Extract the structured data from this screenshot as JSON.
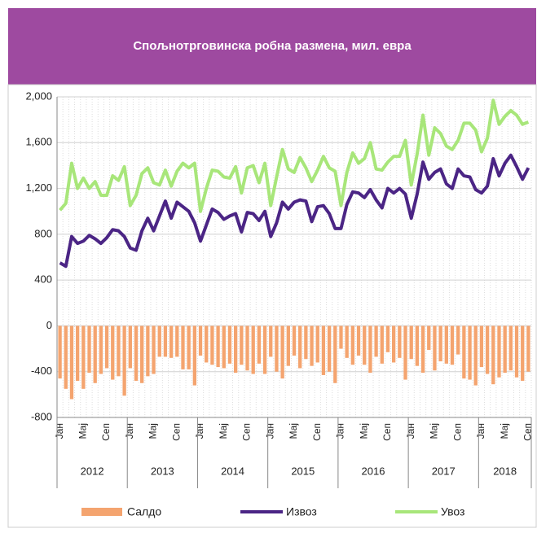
{
  "chart_data": {
    "type": "bar-line",
    "title": "Спољнотрговинска робна размена, мил. евра",
    "categories": [
      "Јан",
      null,
      null,
      null,
      "Мај",
      null,
      null,
      null,
      "Сеп",
      null,
      null,
      null,
      "Јан",
      null,
      null,
      null,
      "Мај",
      null,
      null,
      null,
      "Сеп",
      null,
      null,
      null,
      "Јан",
      null,
      null,
      null,
      "Мај",
      null,
      null,
      null,
      "Сеп",
      null,
      null,
      null,
      "Јан",
      null,
      null,
      null,
      "Мај",
      null,
      null,
      null,
      "Сеп",
      null,
      null,
      null,
      "Јан",
      null,
      null,
      null,
      "Мај",
      null,
      null,
      null,
      "Сеп",
      null,
      null,
      null,
      "Јан",
      null,
      null,
      null,
      "Мај",
      null,
      null,
      null,
      "Сеп",
      null,
      null,
      null,
      "Јан",
      null,
      null,
      null,
      "Мај",
      null,
      null,
      null,
      "Сеп"
    ],
    "year_groups": [
      "2012",
      "2013",
      "2014",
      "2015",
      "2016",
      "2017",
      "2018"
    ],
    "series": [
      {
        "name": "Салдо",
        "type": "bar",
        "color": "#f4a46f",
        "values": [
          -460,
          -550,
          -640,
          -480,
          -550,
          -410,
          -500,
          -420,
          -370,
          -470,
          -440,
          -610,
          -370,
          -480,
          -500,
          -440,
          -420,
          -270,
          -270,
          -280,
          -270,
          -380,
          -380,
          -520,
          -260,
          -320,
          -340,
          -360,
          -370,
          -330,
          -410,
          -340,
          -390,
          -420,
          -330,
          -420,
          -270,
          -400,
          -460,
          -350,
          -260,
          -370,
          -290,
          -350,
          -320,
          -430,
          -400,
          -500,
          -200,
          -280,
          -340,
          -260,
          -340,
          -410,
          -270,
          -330,
          -230,
          -320,
          -280,
          -470,
          -290,
          -350,
          -410,
          -210,
          -390,
          -310,
          -330,
          -340,
          -250,
          -460,
          -470,
          -520,
          -360,
          -420,
          -510,
          -450,
          -410,
          -390,
          -450,
          -480,
          -400
        ]
      },
      {
        "name": "Извоз",
        "type": "line",
        "color": "#4b2585",
        "values": [
          550,
          520,
          780,
          720,
          740,
          790,
          760,
          720,
          770,
          840,
          830,
          780,
          680,
          660,
          830,
          940,
          830,
          960,
          1090,
          940,
          1080,
          1040,
          1000,
          900,
          740,
          880,
          1020,
          990,
          930,
          960,
          980,
          820,
          990,
          980,
          920,
          1000,
          780,
          900,
          1080,
          1020,
          1080,
          1100,
          1090,
          910,
          1040,
          1050,
          980,
          850,
          850,
          1060,
          1170,
          1160,
          1120,
          1190,
          1100,
          1030,
          1200,
          1160,
          1200,
          1150,
          940,
          1150,
          1430,
          1280,
          1340,
          1370,
          1240,
          1200,
          1370,
          1310,
          1300,
          1190,
          1160,
          1220,
          1460,
          1310,
          1420,
          1490,
          1390,
          1280,
          1380
        ]
      },
      {
        "name": "Увоз",
        "type": "line",
        "color": "#a8e67a",
        "values": [
          1010,
          1070,
          1420,
          1200,
          1290,
          1200,
          1260,
          1140,
          1140,
          1310,
          1270,
          1390,
          1050,
          1140,
          1330,
          1380,
          1250,
          1230,
          1360,
          1220,
          1350,
          1420,
          1380,
          1420,
          1000,
          1200,
          1360,
          1350,
          1300,
          1290,
          1390,
          1160,
          1380,
          1400,
          1250,
          1420,
          1050,
          1300,
          1540,
          1370,
          1340,
          1470,
          1380,
          1260,
          1360,
          1480,
          1380,
          1350,
          1050,
          1340,
          1510,
          1420,
          1460,
          1600,
          1370,
          1360,
          1430,
          1480,
          1480,
          1620,
          1230,
          1500,
          1840,
          1490,
          1730,
          1680,
          1570,
          1540,
          1620,
          1770,
          1770,
          1710,
          1520,
          1640,
          1970,
          1760,
          1830,
          1880,
          1840,
          1760,
          1780
        ]
      }
    ],
    "ylim": [
      -800,
      2000
    ],
    "yticks": [
      {
        "value": 2000,
        "label": "2,000"
      },
      {
        "value": 1600,
        "label": "1,600"
      },
      {
        "value": 1200,
        "label": "1,200"
      },
      800,
      400,
      0,
      -400,
      -800
    ],
    "grid": true,
    "header_color": "#9e4aa0"
  }
}
